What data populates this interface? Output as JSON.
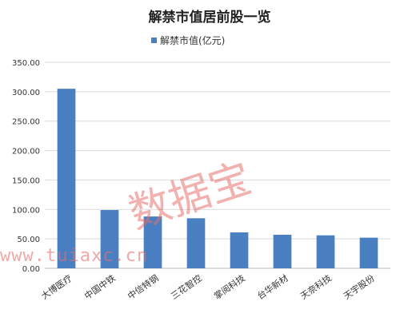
{
  "chart_data": {
    "type": "bar",
    "title": "解禁市值居前股一览",
    "legend": {
      "label": "解禁市值(亿元)",
      "placement": "top"
    },
    "categories": [
      "大博医疗",
      "中国中铁",
      "中信特钢",
      "三花智控",
      "掌阅科技",
      "台华新材",
      "天奈科技",
      "天宇股份"
    ],
    "series": [
      {
        "name": "解禁市值(亿元)",
        "values": [
          305,
          99,
          88,
          85,
          61,
          57,
          56,
          52
        ]
      }
    ],
    "ylim": [
      0,
      350
    ],
    "yticks": [
      "0.00",
      "50.00",
      "100.00",
      "150.00",
      "200.00",
      "250.00",
      "300.00",
      "350.00"
    ],
    "grid": true,
    "color": "#4a7fc1"
  },
  "watermark": {
    "text": "数据宝",
    "url": "www.tuiaxc.cn",
    "color": "#e8706e"
  }
}
